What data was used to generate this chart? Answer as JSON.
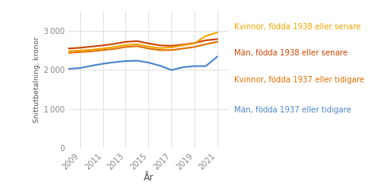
{
  "years": [
    2008,
    2009,
    2010,
    2011,
    2012,
    2013,
    2014,
    2015,
    2016,
    2017,
    2018,
    2019,
    2020,
    2021
  ],
  "kvinnor_1938": [
    2480,
    2500,
    2520,
    2550,
    2590,
    2640,
    2660,
    2600,
    2560,
    2580,
    2630,
    2680,
    2870,
    2960
  ],
  "man_1938": [
    2550,
    2570,
    2600,
    2630,
    2670,
    2720,
    2740,
    2680,
    2630,
    2620,
    2650,
    2690,
    2760,
    2790
  ],
  "kvinnor_1937": [
    2440,
    2460,
    2480,
    2510,
    2540,
    2590,
    2610,
    2550,
    2510,
    2510,
    2550,
    2590,
    2660,
    2720
  ],
  "man_1937": [
    2030,
    2050,
    2110,
    2160,
    2200,
    2230,
    2240,
    2190,
    2110,
    2000,
    2070,
    2100,
    2100,
    2340
  ],
  "color_kvinnor_1938": "#f0a500",
  "color_man_1938": "#cc4400",
  "color_kvinnor_1937": "#e07000",
  "color_man_1937": "#4a86c8",
  "ylabel": "Snittutbetalning, kronor",
  "xlabel": "År",
  "ylim": [
    0,
    3500
  ],
  "yticks": [
    0,
    1000,
    2000,
    3000
  ],
  "xticks": [
    2009,
    2011,
    2013,
    2015,
    2017,
    2019,
    2021
  ],
  "legend_labels": [
    "Kvinnor, födda 1938 eller senare",
    "Män, födda 1938 eller senare",
    "Kvinnor, födda 1937 eller tidigare",
    "Män, födda 1937 eller tidigare"
  ],
  "legend_colors": [
    "#f0a500",
    "#cc4400",
    "#e07000",
    "#4a86c8"
  ],
  "bg_color": "#ffffff",
  "grid_color": "#e0e0e0",
  "tick_color": "#888888",
  "label_color": "#555555"
}
